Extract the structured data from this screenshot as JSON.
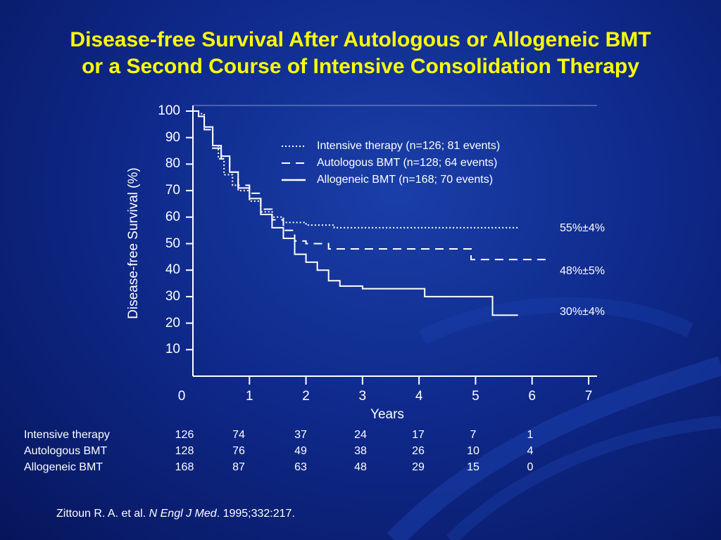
{
  "title": {
    "line1": "Disease-free Survival After Autologous or Allogeneic BMT",
    "line2": "or a Second Course of Intensive Consolidation Therapy"
  },
  "chart_data": {
    "type": "line",
    "ylabel": "Disease-free Survival (%)",
    "xlabel": "Years",
    "ylim": [
      0,
      100
    ],
    "xlim": [
      0,
      7
    ],
    "yticks": [
      "100",
      "90",
      "80",
      "70",
      "60",
      "50",
      "40",
      "30",
      "20",
      "10"
    ],
    "xticks": [
      "0",
      "1",
      "2",
      "3",
      "4",
      "5",
      "6",
      "7"
    ],
    "legend_position": "upper-right",
    "series": [
      {
        "name": "Intensive therapy (n=126; 81 events)",
        "style": "dotted",
        "end_label": "55%±4%",
        "x": [
          0,
          0.1,
          0.2,
          0.35,
          0.45,
          0.55,
          0.7,
          0.8,
          1.0,
          1.2,
          1.4,
          1.6,
          1.8,
          2.0,
          2.4,
          2.5,
          3.0,
          4.0,
          5.0,
          5.75
        ],
        "y": [
          100,
          99,
          94,
          87,
          82,
          76,
          72,
          70,
          66,
          62,
          60,
          58,
          58,
          57,
          57,
          56,
          56,
          56,
          56,
          56
        ]
      },
      {
        "name": "Autologous BMT (n=128; 64 events)",
        "style": "dashed",
        "end_label": "48%±5%",
        "x": [
          0,
          0.1,
          0.2,
          0.35,
          0.5,
          0.65,
          0.8,
          1.0,
          1.2,
          1.4,
          1.6,
          1.8,
          2.0,
          2.2,
          2.4,
          3.0,
          4.0,
          4.9,
          4.92,
          5.5,
          6.3
        ],
        "y": [
          100,
          98,
          93,
          86,
          82,
          77,
          72,
          69,
          63,
          59,
          55,
          51,
          50,
          50,
          48,
          48,
          48,
          48,
          44,
          44,
          44
        ]
      },
      {
        "name": "Allogeneic BMT (n=168; 70 events)",
        "style": "solid",
        "end_label": "30%±4%",
        "x": [
          0,
          0.1,
          0.2,
          0.35,
          0.5,
          0.65,
          0.8,
          1.0,
          1.2,
          1.4,
          1.6,
          1.8,
          2.0,
          2.2,
          2.4,
          2.6,
          3.0,
          3.2,
          4.0,
          4.1,
          5.0,
          5.3,
          5.75
        ],
        "y": [
          100,
          98,
          94,
          87,
          83,
          77,
          71,
          67,
          61,
          56,
          52,
          46,
          43,
          40,
          36,
          34,
          33,
          33,
          33,
          30,
          30,
          23,
          23
        ]
      }
    ]
  },
  "risk_table": {
    "rows": [
      {
        "label": "Intensive therapy",
        "values": [
          "126",
          "74",
          "37",
          "24",
          "17",
          "7",
          "1"
        ]
      },
      {
        "label": "Autologous BMT",
        "values": [
          "128",
          "76",
          "49",
          "38",
          "26",
          "10",
          "4"
        ]
      },
      {
        "label": "Allogeneic BMT",
        "values": [
          "168",
          "87",
          "63",
          "48",
          "29",
          "15",
          "0"
        ]
      }
    ]
  },
  "citation": {
    "authors": "Zittoun R. A. et al. ",
    "journal": "N Engl J Med",
    "rest": ". 1995;332:217."
  },
  "colors": {
    "background": "#0f2a8c",
    "title": "#ffff00",
    "text": "#ffffff"
  }
}
